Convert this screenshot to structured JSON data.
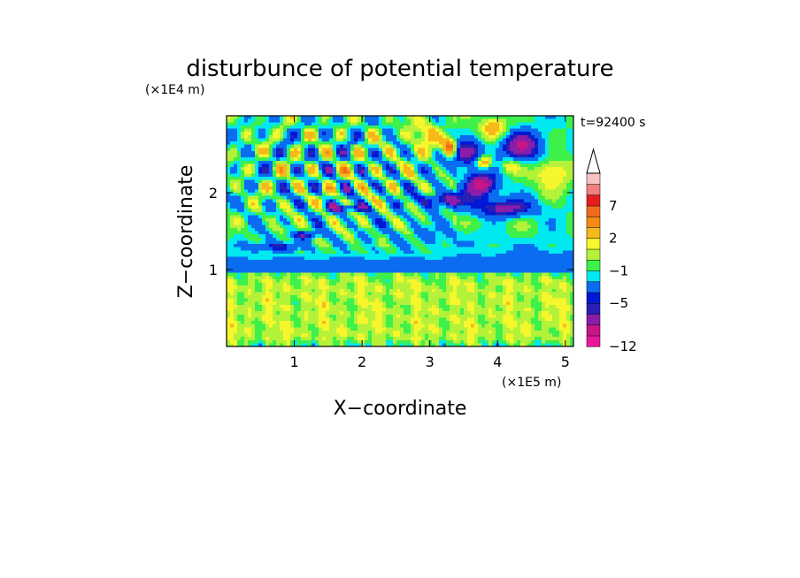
{
  "chart_data": {
    "type": "heatmap",
    "title": "disturbunce of potential temperature",
    "xlabel": "X−coordinate",
    "ylabel": "Z−coordinate",
    "x_scale_label": "(×1E5 m)",
    "y_scale_label": "(×1E4 m)",
    "time_label": "t=92400 s",
    "xlim": [
      0,
      5.12
    ],
    "ylim": [
      0,
      3.0
    ],
    "x_ticks": [
      1,
      2,
      3,
      4,
      5
    ],
    "x_tick_labels": [
      "1",
      "2",
      "3",
      "4",
      "5"
    ],
    "y_ticks": [
      1,
      2
    ],
    "y_tick_labels": [
      "1",
      "2"
    ],
    "colorbar": {
      "colors": [
        "#e8179a",
        "#c71585",
        "#8b1ea8",
        "#2a1fb5",
        "#0018d6",
        "#0a6cf0",
        "#00e8f0",
        "#3ef04a",
        "#b4f23a",
        "#f6f62c",
        "#f7b81a",
        "#f58a14",
        "#f06a1a",
        "#e41e1e",
        "#f08080",
        "#f8c4c4"
      ],
      "tick_labels": [
        "7",
        "2",
        "−1",
        "−5",
        "−12"
      ],
      "overflow_arrow": "top"
    }
  }
}
